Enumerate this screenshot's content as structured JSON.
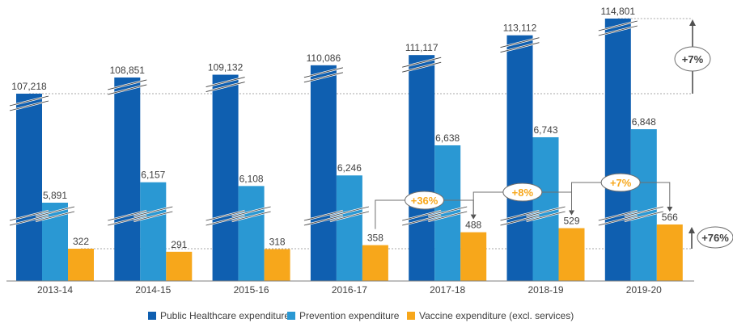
{
  "chart_data": {
    "type": "bar",
    "categories": [
      "2013-14",
      "2014-15",
      "2015-16",
      "2016-17",
      "2017-18",
      "2018-19",
      "2019-20"
    ],
    "series": [
      {
        "name": "Public Healthcare expenditure",
        "color": "#0F5FB0",
        "values": [
          107218,
          108851,
          109132,
          110086,
          111117,
          113112,
          114801
        ],
        "value_labels": [
          "107,218",
          "108,851",
          "109,132",
          "110,086",
          "111,117",
          "113,112",
          "114,801"
        ]
      },
      {
        "name": "Prevention expenditure",
        "color": "#2A98D3",
        "values": [
          5891,
          6157,
          6108,
          6246,
          6638,
          6743,
          6848
        ],
        "value_labels": [
          "5,891",
          "6,157",
          "6,108",
          "6,246",
          "6,638",
          "6,743",
          "6,848"
        ]
      },
      {
        "name": "Vaccine expenditure (excl. services)",
        "color": "#F7A71B",
        "values": [
          322,
          291,
          318,
          358,
          488,
          529,
          566
        ],
        "value_labels": [
          "322",
          "291",
          "318",
          "358",
          "488",
          "529",
          "566"
        ]
      }
    ],
    "broken_axis": true,
    "title": "",
    "xlabel": "",
    "ylabel": "",
    "legend_position": "bottom",
    "annotations": [
      {
        "text": "+36%",
        "from_category": "2016-17",
        "to_category": "2017-18",
        "series": "Vaccine expenditure (excl. services)",
        "color": "#F7A71B"
      },
      {
        "text": "+8%",
        "from_category": "2017-18",
        "to_category": "2018-19",
        "series": "Vaccine expenditure (excl. services)",
        "color": "#F7A71B"
      },
      {
        "text": "+7%",
        "from_category": "2018-19",
        "to_category": "2019-20",
        "series": "Vaccine expenditure (excl. services)",
        "color": "#F7A71B"
      },
      {
        "text": "+7%",
        "from_category": "2013-14",
        "to_category": "2019-20",
        "series": "Public Healthcare expenditure",
        "color": "#404040"
      },
      {
        "text": "+76%",
        "from_category": "2013-14",
        "to_category": "2019-20",
        "series": "Vaccine expenditure (excl. services)",
        "color": "#404040"
      }
    ]
  }
}
